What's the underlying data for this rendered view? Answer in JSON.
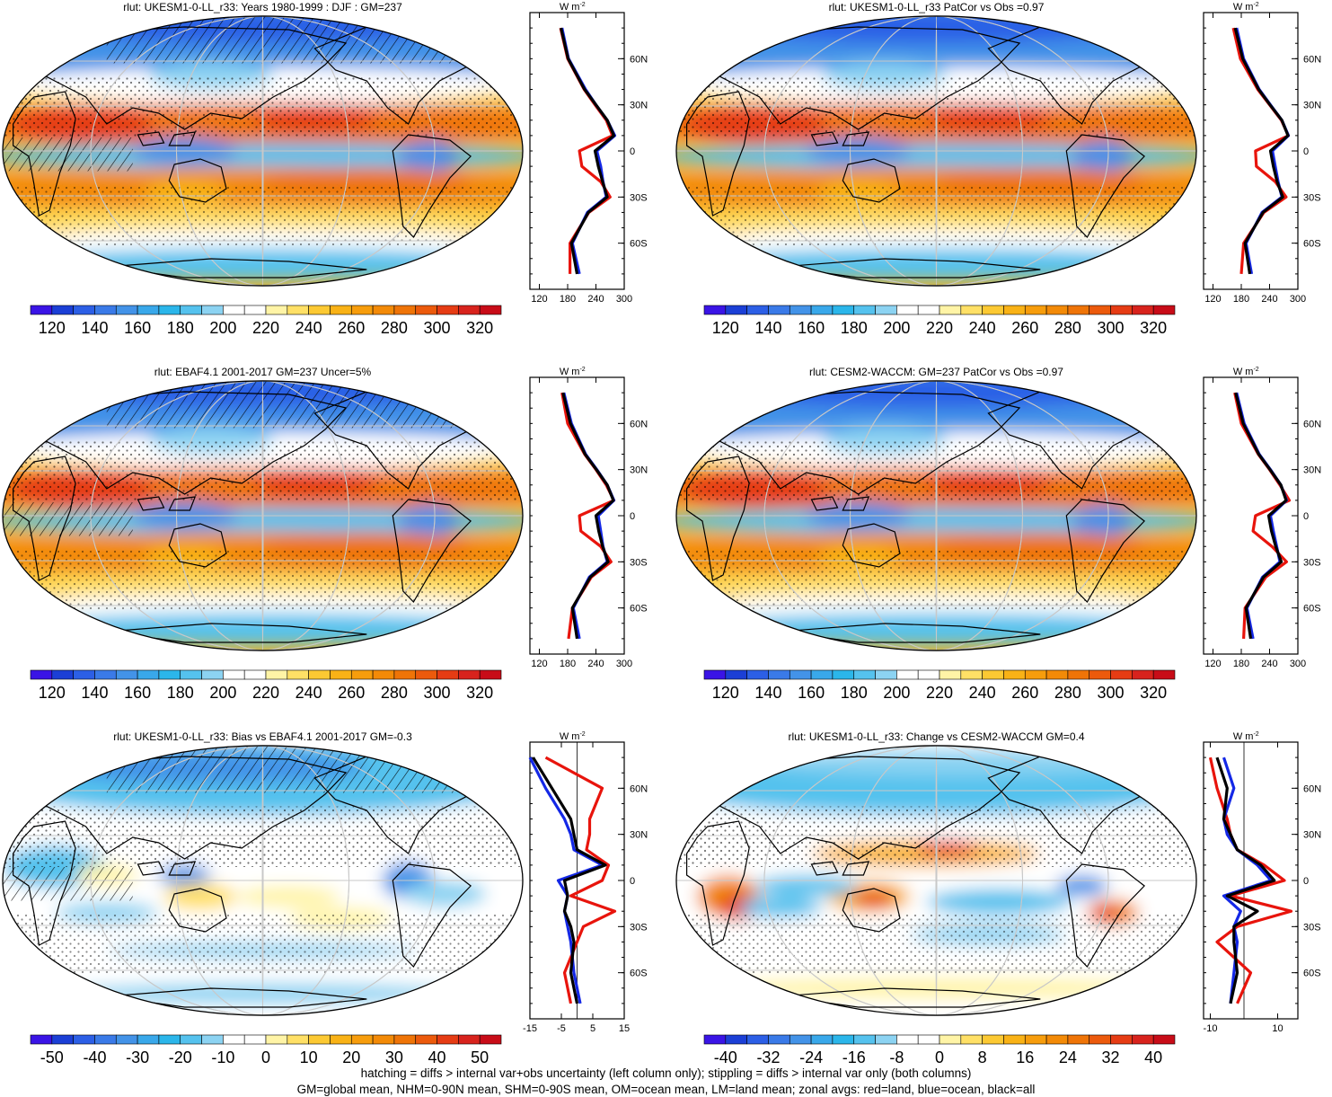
{
  "panels": [
    {
      "title": "rlut: UKESM1-0-LL_r33: Years 1980-1999 : DJF : GM=237",
      "kind": "clim",
      "hatch": true
    },
    {
      "title": "rlut: UKESM1-0-LL_r33 PatCor vs Obs =0.97",
      "kind": "clim",
      "hatch": false
    },
    {
      "title": "rlut: EBAF4.1 2001-2017 GM=237 Uncer=5%",
      "kind": "clim",
      "hatch": true
    },
    {
      "title": "rlut: CESM2-WACCM: GM=237 PatCor vs Obs =0.97",
      "kind": "clim",
      "hatch": false
    },
    {
      "title": "rlut: UKESM1-0-LL_r33: Bias vs EBAF4.1 2001-2017 GM=-0.3",
      "kind": "bias",
      "hatch": true
    },
    {
      "title": "rlut: UKESM1-0-LL_r33: Change vs CESM2-WACCM GM=0.4",
      "kind": "change",
      "hatch": false
    }
  ],
  "colorbars": {
    "clim": {
      "labels": [
        "120",
        "140",
        "160",
        "180",
        "200",
        "220",
        "240",
        "260",
        "280",
        "300",
        "320"
      ],
      "colors": [
        "#3a14e6",
        "#1b3fd6",
        "#2c5fe6",
        "#3a7ae8",
        "#4393e8",
        "#39a8ea",
        "#2bb6ea",
        "#55c2ee",
        "#8cd3f2",
        "#ffffff",
        "#ffffff",
        "#fff4a6",
        "#ffe066",
        "#fcc933",
        "#f9b216",
        "#f79d0c",
        "#f38a07",
        "#ef7407",
        "#ec5a0c",
        "#e63c14",
        "#d8231d",
        "#c80c18"
      ]
    },
    "bias": {
      "labels": [
        "-50",
        "-40",
        "-30",
        "-20",
        "-10",
        "0",
        "10",
        "20",
        "30",
        "40",
        "50"
      ],
      "colors": [
        "#3a14e6",
        "#1b3fd6",
        "#2c5fe6",
        "#3a7ae8",
        "#4393e8",
        "#39a8ea",
        "#2bb6ea",
        "#55c2ee",
        "#8cd3f2",
        "#ffffff",
        "#ffffff",
        "#fff4a6",
        "#ffe066",
        "#fcc933",
        "#f9b216",
        "#f79d0c",
        "#f38a07",
        "#ef7407",
        "#ec5a0c",
        "#e63c14",
        "#d8231d",
        "#c80c18"
      ]
    },
    "change": {
      "labels": [
        "-40",
        "-32",
        "-24",
        "-16",
        "-8",
        "0",
        "8",
        "16",
        "24",
        "32",
        "40"
      ],
      "colors": [
        "#3a14e6",
        "#1b3fd6",
        "#2c5fe6",
        "#3a7ae8",
        "#4393e8",
        "#39a8ea",
        "#2bb6ea",
        "#55c2ee",
        "#8cd3f2",
        "#ffffff",
        "#ffffff",
        "#fff4a6",
        "#ffe066",
        "#fcc933",
        "#f9b216",
        "#f79d0c",
        "#f38a07",
        "#ef7407",
        "#ec5a0c",
        "#e63c14",
        "#d8231d",
        "#c80c18"
      ]
    }
  },
  "zonal": {
    "unit": "W m",
    "unit_sup": "-2",
    "lat_labels": [
      "60N",
      "30N",
      "0",
      "30S",
      "60S"
    ],
    "clim_x": [
      "120",
      "180",
      "240",
      "300"
    ],
    "bias_x": [
      "-15",
      "-5",
      "5",
      "15"
    ],
    "change_x": [
      "-10",
      "10"
    ],
    "colors": {
      "land": "#e8140c",
      "ocean": "#1428e6",
      "all": "#000000"
    }
  },
  "chart_data": [
    {
      "type": "line",
      "title": "rlut: UKESM1-0-LL_r33: Years 1980-1999 : DJF : GM=237",
      "xlim": [
        100,
        300
      ],
      "ylabel": "",
      "y": [
        -80,
        -60,
        -40,
        -30,
        -20,
        -10,
        0,
        10,
        20,
        30,
        40,
        60,
        80
      ],
      "series": [
        {
          "name": "red=land",
          "values": [
            185,
            185,
            225,
            270,
            250,
            210,
            205,
            275,
            262,
            238,
            215,
            180,
            165
          ]
        },
        {
          "name": "blue=ocean",
          "values": [
            205,
            190,
            222,
            262,
            255,
            250,
            242,
            280,
            264,
            240,
            218,
            182,
            168
          ]
        },
        {
          "name": "black=all",
          "values": [
            200,
            188,
            224,
            264,
            254,
            245,
            238,
            278,
            264,
            240,
            216,
            181,
            166
          ]
        }
      ]
    },
    {
      "type": "line",
      "title": "rlut: UKESM1-0-LL_r33 PatCor vs Obs =0.97",
      "xlim": [
        100,
        300
      ],
      "y": [
        -80,
        -60,
        -40,
        -30,
        -20,
        -10,
        0,
        10,
        20,
        30,
        40,
        60,
        80
      ],
      "series": [
        {
          "name": "red=land",
          "values": [
            180,
            185,
            228,
            275,
            252,
            212,
            210,
            280,
            265,
            240,
            215,
            178,
            163
          ]
        },
        {
          "name": "blue=ocean",
          "values": [
            202,
            190,
            224,
            266,
            258,
            252,
            246,
            280,
            266,
            242,
            218,
            185,
            170
          ]
        },
        {
          "name": "black=all",
          "values": [
            198,
            188,
            226,
            268,
            256,
            248,
            242,
            279,
            266,
            241,
            217,
            183,
            167
          ]
        }
      ]
    },
    {
      "type": "line",
      "title": "rlut: EBAF4.1 2001-2017 GM=237 Uncer=5%",
      "xlim": [
        100,
        300
      ],
      "y": [
        -80,
        -60,
        -40,
        -30,
        -20,
        -10,
        0,
        10,
        20,
        30,
        40,
        60,
        80
      ],
      "series": [
        {
          "name": "red=land",
          "values": [
            182,
            190,
            230,
            272,
            250,
            208,
            205,
            278,
            262,
            240,
            216,
            180,
            168
          ]
        },
        {
          "name": "blue=ocean",
          "values": [
            205,
            192,
            226,
            264,
            255,
            250,
            245,
            278,
            264,
            242,
            218,
            188,
            172
          ]
        },
        {
          "name": "black=all",
          "values": [
            200,
            190,
            228,
            266,
            254,
            246,
            240,
            277,
            264,
            241,
            217,
            186,
            170
          ]
        }
      ]
    },
    {
      "type": "line",
      "title": "rlut: CESM2-WACCM: GM=237 PatCor vs Obs =0.97",
      "xlim": [
        100,
        300
      ],
      "y": [
        -80,
        -60,
        -40,
        -30,
        -20,
        -10,
        0,
        10,
        20,
        30,
        40,
        60,
        80
      ],
      "series": [
        {
          "name": "red=land",
          "values": [
            185,
            188,
            232,
            276,
            245,
            205,
            210,
            282,
            262,
            240,
            216,
            180,
            166
          ]
        },
        {
          "name": "blue=ocean",
          "values": [
            205,
            192,
            225,
            262,
            255,
            248,
            242,
            276,
            264,
            242,
            218,
            186,
            170
          ]
        },
        {
          "name": "black=all",
          "values": [
            200,
            190,
            227,
            265,
            253,
            244,
            238,
            275,
            264,
            241,
            217,
            184,
            168
          ]
        }
      ]
    },
    {
      "type": "line",
      "title": "rlut: UKESM1-0-LL_r33: Bias vs EBAF4.1 2001-2017 GM=-0.3",
      "xlim": [
        -15,
        15
      ],
      "y": [
        -80,
        -60,
        -40,
        -30,
        -20,
        -10,
        0,
        10,
        20,
        30,
        40,
        60,
        80
      ],
      "series": [
        {
          "name": "red=land",
          "values": [
            -2,
            -4,
            0,
            2,
            12,
            -2,
            8,
            10,
            3,
            4,
            4,
            8,
            -10
          ]
        },
        {
          "name": "blue=ocean",
          "values": [
            1,
            -1,
            -2,
            -3,
            -4,
            -3,
            -6,
            8,
            -1,
            -2,
            -4,
            -10,
            -15
          ]
        },
        {
          "name": "black=all",
          "values": [
            0,
            -2,
            -1,
            -2,
            -4,
            -3,
            -4,
            9,
            0,
            -1,
            -2,
            -8,
            -14
          ]
        }
      ]
    },
    {
      "type": "line",
      "title": "rlut: UKESM1-0-LL_r33: Change vs CESM2-WACCM GM=0.4",
      "xlim": [
        -12,
        16
      ],
      "y": [
        -80,
        -60,
        -40,
        -30,
        -20,
        -10,
        0,
        10,
        20,
        30,
        40,
        60,
        80
      ],
      "series": [
        {
          "name": "red=land",
          "values": [
            -2,
            2,
            -8,
            -2,
            14,
            -4,
            12,
            6,
            -2,
            -4,
            -5,
            -8,
            -10
          ]
        },
        {
          "name": "blue=ocean",
          "values": [
            -4,
            -3,
            -2,
            -3,
            -1,
            -6,
            8,
            4,
            -2,
            -5,
            -6,
            -3,
            -6
          ]
        },
        {
          "name": "black=all",
          "values": [
            -4,
            -2,
            -3,
            -3,
            4,
            -5,
            9,
            5,
            -2,
            -4,
            -6,
            -5,
            -8
          ]
        }
      ]
    }
  ],
  "footnote": {
    "line1": "hatching = diffs > internal var+obs uncertainty (left column only); stippling = diffs > internal var only (both columns)",
    "line2": "GM=global mean, NHM=0-90N mean, SHM=0-90S mean, OM=ocean mean, LM=land mean; zonal avgs: red=land, blue=ocean, black=all"
  }
}
